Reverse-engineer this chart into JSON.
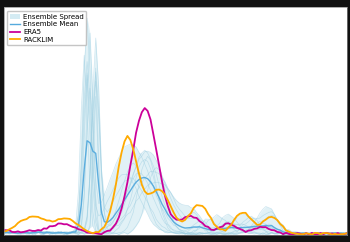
{
  "background_color": "#111111",
  "plot_bg_color": "#ffffff",
  "legend_entries": [
    "Ensemble Spread",
    "Ensemble Mean",
    "ERA5",
    "RACKLIM"
  ],
  "ensemble_spread_color": "#aad8e8",
  "ensemble_mean_color": "#55aadd",
  "era5_color": "#cc0099",
  "racklim_color": "#ffaa00",
  "n_points": 120,
  "n_members": 12
}
